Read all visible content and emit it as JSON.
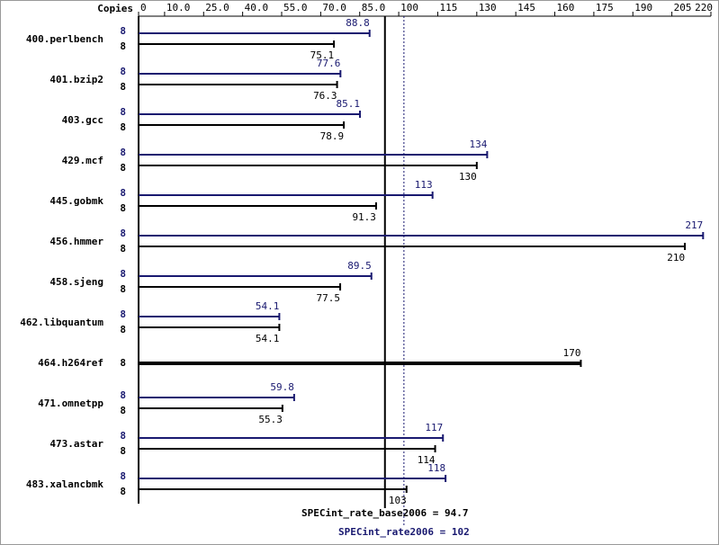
{
  "chart_data": {
    "type": "bar",
    "copies_label": "Copies",
    "categories": [
      "400.perlbench",
      "401.bzip2",
      "403.gcc",
      "429.mcf",
      "445.gobmk",
      "456.hmmer",
      "458.sjeng",
      "462.libquantum",
      "464.h264ref",
      "471.omnetpp",
      "473.astar",
      "483.xalancbmk"
    ],
    "series": [
      {
        "color": "#191970",
        "copies": [
          8,
          8,
          8,
          8,
          8,
          8,
          8,
          8,
          null,
          8,
          8,
          8
        ],
        "values": [
          88.8,
          77.6,
          85.1,
          134,
          113,
          217,
          89.5,
          54.1,
          null,
          59.8,
          117,
          118
        ]
      },
      {
        "color": "#000000",
        "copies": [
          8,
          8,
          8,
          8,
          8,
          8,
          8,
          8,
          8,
          8,
          8,
          8
        ],
        "values": [
          75.1,
          76.3,
          78.9,
          130,
          91.3,
          210,
          77.5,
          54.1,
          170,
          55.3,
          114,
          103
        ]
      }
    ],
    "xlim": [
      0,
      220
    ],
    "xticks": [
      0,
      {
        "value": 10,
        "label": "10.0"
      },
      {
        "value": 25,
        "label": "25.0"
      },
      {
        "value": 40,
        "label": "40.0"
      },
      {
        "value": 55,
        "label": "55.0"
      },
      {
        "value": 70,
        "label": "70.0"
      },
      {
        "value": 85,
        "label": "85.0"
      },
      100,
      115,
      130,
      145,
      160,
      175,
      190,
      205,
      220
    ],
    "base_mean": {
      "value": 94.7,
      "label": "SPECint_rate_base2006 = 94.7"
    },
    "peak_mean": {
      "value": 102,
      "label": "SPECint_rate2006 = 102"
    }
  }
}
